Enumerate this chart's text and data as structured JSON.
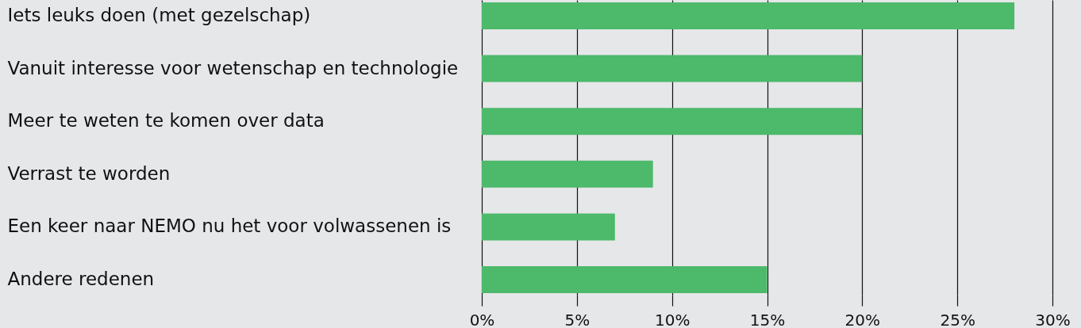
{
  "chart_data": {
    "type": "bar",
    "orientation": "horizontal",
    "categories": [
      "Iets leuks doen (met gezelschap)",
      "Vanuit interesse voor wetenschap en technologie",
      "Meer te weten te komen over data",
      "Verrast te worden",
      "Een keer naar NEMO nu het voor volwassenen is",
      "Andere redenen"
    ],
    "values": [
      28,
      20,
      20,
      9,
      7,
      15
    ],
    "color": "#4cb96b",
    "xlim": [
      0,
      30
    ],
    "xticks": [
      {
        "value": 0,
        "label": "0%"
      },
      {
        "value": 5,
        "label": "5%"
      },
      {
        "value": 10,
        "label": "10%"
      },
      {
        "value": 15,
        "label": "15%"
      },
      {
        "value": 20,
        "label": "20%"
      },
      {
        "value": 25,
        "label": "25%"
      },
      {
        "value": 30,
        "label": "30%"
      }
    ],
    "grid": "x"
  }
}
